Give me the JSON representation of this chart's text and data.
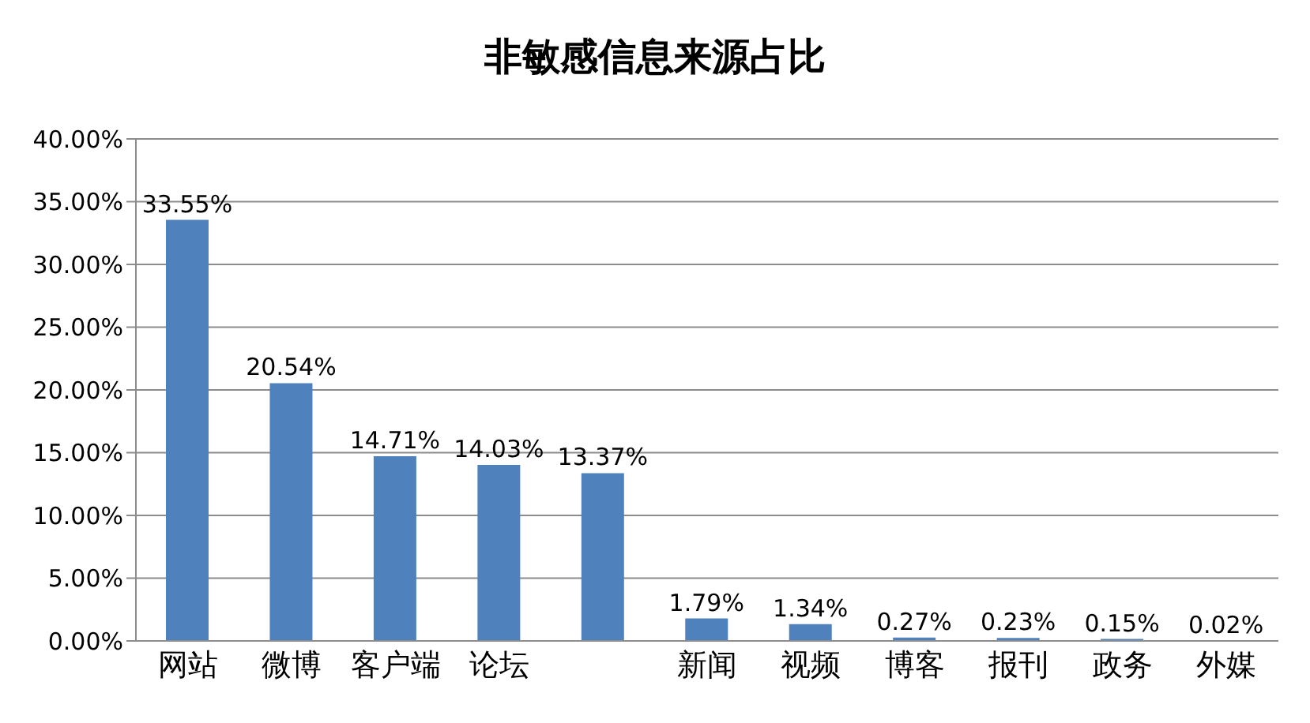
{
  "chart_data": {
    "type": "bar",
    "title": "非敏感信息来源占比",
    "categories": [
      "网站",
      "微博",
      "客户端",
      "论坛",
      null,
      "新闻",
      "视频",
      "博客",
      "报刊",
      "政务",
      "外媒"
    ],
    "values": [
      33.55,
      20.54,
      14.71,
      14.03,
      13.37,
      1.79,
      1.34,
      0.27,
      0.23,
      0.15,
      0.02
    ],
    "value_labels": [
      "33.55%",
      "20.54%",
      "14.71%",
      "14.03%",
      "13.37%",
      "1.79%",
      "1.34%",
      "0.27%",
      "0.23%",
      "0.15%",
      "0.02%"
    ],
    "color": "#4f81bd",
    "ylim": [
      0,
      40
    ],
    "yticks": [
      {
        "value": 0,
        "label": "0.00%"
      },
      {
        "value": 5,
        "label": "5.00%"
      },
      {
        "value": 10,
        "label": "10.00%"
      },
      {
        "value": 15,
        "label": "15.00%"
      },
      {
        "value": 20,
        "label": "20.00%"
      },
      {
        "value": 25,
        "label": "25.00%"
      },
      {
        "value": 30,
        "label": "30.00%"
      },
      {
        "value": 35,
        "label": "35.00%"
      },
      {
        "value": 40,
        "label": "40.00%"
      }
    ],
    "grid": "y",
    "legend": false
  }
}
